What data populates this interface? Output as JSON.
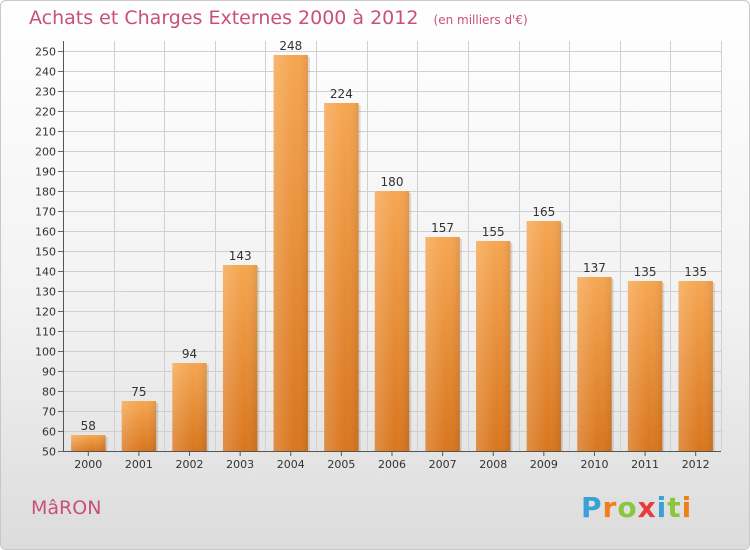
{
  "chart_data": {
    "type": "bar",
    "title": "Achats et Charges Externes 2000 à 2012",
    "subtitle": "(en milliers d'€)",
    "categories": [
      "2000",
      "2001",
      "2002",
      "2003",
      "2004",
      "2005",
      "2006",
      "2007",
      "2008",
      "2009",
      "2010",
      "2011",
      "2012"
    ],
    "values": [
      58,
      75,
      94,
      143,
      248,
      224,
      180,
      157,
      155,
      165,
      137,
      135,
      135
    ],
    "ylim": [
      50,
      250
    ],
    "ytick_step": 10,
    "grid": true,
    "bar_color_top": "#f6a651",
    "bar_color_bottom": "#d9761e",
    "label_color": "#333333"
  },
  "footer": {
    "commune": "MâRON",
    "brand": "Proxiti",
    "brand_colors": [
      "#3aa0d8",
      "#f07f1b",
      "#8cc63f",
      "#e73c3c",
      "#3aa0d8",
      "#8cc63f",
      "#f07f1b"
    ]
  }
}
